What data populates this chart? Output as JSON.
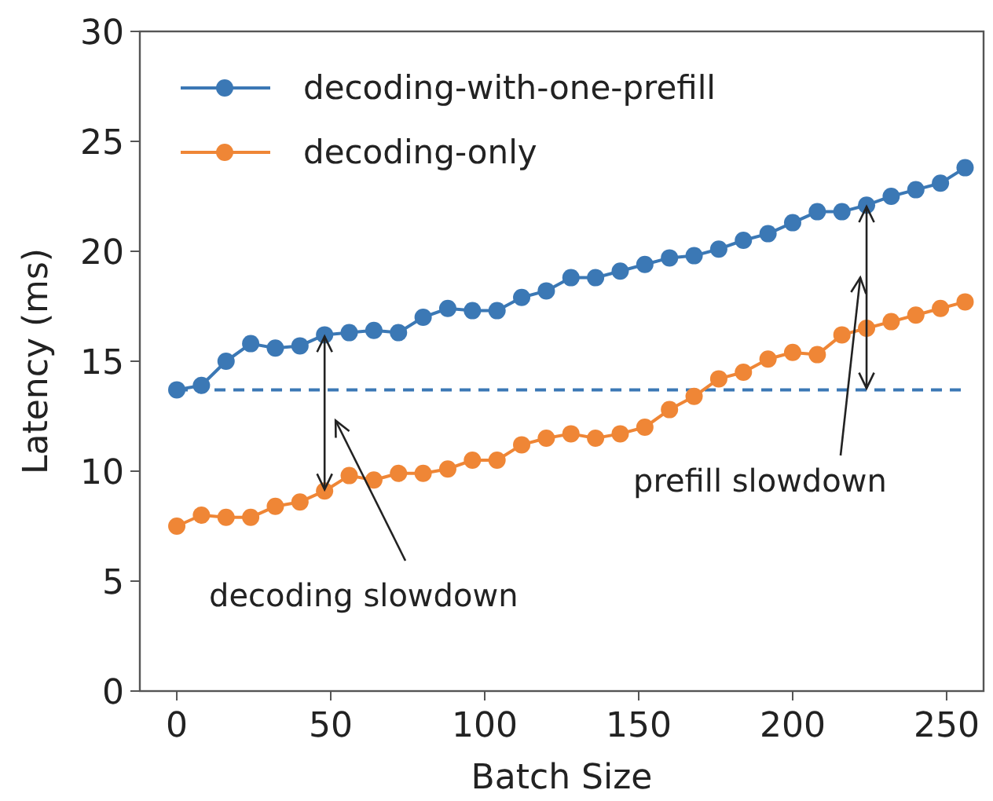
{
  "chart_data": {
    "type": "line",
    "xlabel": "Batch Size",
    "ylabel": "Latency (ms)",
    "x": [
      0,
      8,
      16,
      24,
      32,
      40,
      48,
      56,
      64,
      72,
      80,
      88,
      96,
      104,
      112,
      120,
      128,
      136,
      144,
      152,
      160,
      168,
      176,
      184,
      192,
      200,
      208,
      216,
      224,
      232,
      240,
      248,
      256
    ],
    "series": [
      {
        "name": "decoding-with-one-prefill",
        "color": "#3b78b5",
        "values": [
          13.7,
          13.9,
          15.0,
          15.8,
          15.6,
          15.7,
          16.2,
          16.3,
          16.4,
          16.3,
          17.0,
          17.4,
          17.3,
          17.3,
          17.9,
          18.2,
          18.8,
          18.8,
          19.1,
          19.4,
          19.7,
          19.8,
          20.1,
          20.5,
          20.8,
          21.3,
          21.8,
          21.8,
          22.1,
          22.5,
          22.8,
          23.1,
          23.8
        ]
      },
      {
        "name": "decoding-only",
        "color": "#ef8636",
        "values": [
          7.5,
          8.0,
          7.9,
          7.9,
          8.4,
          8.6,
          9.1,
          9.8,
          9.6,
          9.9,
          9.9,
          10.1,
          10.5,
          10.5,
          11.2,
          11.5,
          11.7,
          11.5,
          11.7,
          12.0,
          12.8,
          13.4,
          14.2,
          14.5,
          15.1,
          15.4,
          15.3,
          16.2,
          16.5,
          16.8,
          17.1,
          17.4,
          17.7
        ]
      }
    ],
    "ref_lines": [
      {
        "axis": "y",
        "value": 13.7,
        "color": "#3b78b5",
        "line_style": "dashed"
      }
    ],
    "annotations": [
      "decoding slowdown",
      "prefill slowdown"
    ],
    "xlim": [
      -12,
      262
    ],
    "ylim": [
      0,
      30
    ],
    "xticks": [
      0,
      50,
      100,
      150,
      200,
      250
    ],
    "yticks": [
      0,
      5,
      10,
      15,
      20,
      25,
      30
    ],
    "marker": "circle",
    "line_style": "solid",
    "grid": false,
    "legend": "top left"
  }
}
